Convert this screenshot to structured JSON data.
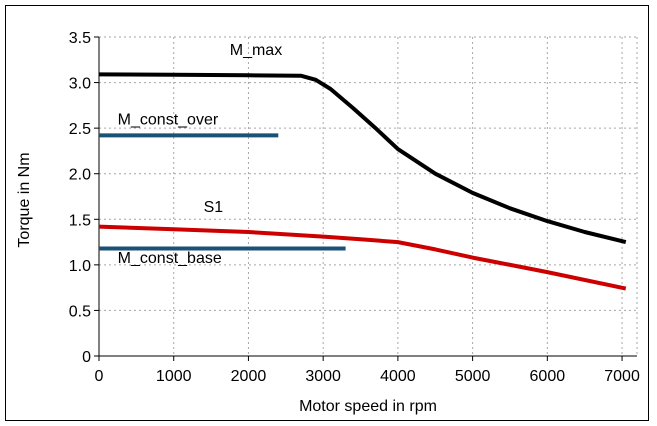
{
  "chart_data": {
    "type": "line",
    "title": "",
    "xlabel": "Motor speed in rpm",
    "ylabel": "Torque in Nm",
    "xlim": [
      0,
      7200
    ],
    "ylim": [
      0,
      3.5
    ],
    "x_ticks": [
      0,
      1000,
      2000,
      3000,
      4000,
      5000,
      6000,
      7000
    ],
    "x_tick_labels": [
      "0",
      "1000",
      "2000",
      "3000",
      "4000",
      "5000",
      "6000",
      "7000"
    ],
    "y_ticks": [
      0,
      0.5,
      1.0,
      1.5,
      2.0,
      2.5,
      3.0,
      3.5
    ],
    "y_tick_labels": [
      "0",
      "0.5",
      "1.0",
      "1.5",
      "2.0",
      "2.5",
      "3.0",
      "3.5"
    ],
    "grid": true,
    "series": [
      {
        "name": "M_max",
        "color": "#000000",
        "points": [
          [
            0,
            3.09
          ],
          [
            1000,
            3.085
          ],
          [
            2000,
            3.08
          ],
          [
            2700,
            3.075
          ],
          [
            2900,
            3.03
          ],
          [
            3100,
            2.93
          ],
          [
            3400,
            2.72
          ],
          [
            3700,
            2.5
          ],
          [
            4000,
            2.27
          ],
          [
            4500,
            2.0
          ],
          [
            5000,
            1.79
          ],
          [
            5500,
            1.62
          ],
          [
            6000,
            1.48
          ],
          [
            6500,
            1.36
          ],
          [
            7050,
            1.25
          ]
        ]
      },
      {
        "name": "M_const_over",
        "color": "#1a5276",
        "points": [
          [
            0,
            2.42
          ],
          [
            2400,
            2.42
          ]
        ]
      },
      {
        "name": "S1",
        "color": "#cc0000",
        "points": [
          [
            0,
            1.42
          ],
          [
            1000,
            1.39
          ],
          [
            2000,
            1.36
          ],
          [
            3000,
            1.31
          ],
          [
            3500,
            1.28
          ],
          [
            4000,
            1.25
          ],
          [
            4500,
            1.17
          ],
          [
            5000,
            1.08
          ],
          [
            6000,
            0.92
          ],
          [
            7050,
            0.74
          ]
        ]
      },
      {
        "name": "M_const_base",
        "color": "#1a5276",
        "points": [
          [
            0,
            1.18
          ],
          [
            3300,
            1.18
          ]
        ]
      }
    ]
  }
}
